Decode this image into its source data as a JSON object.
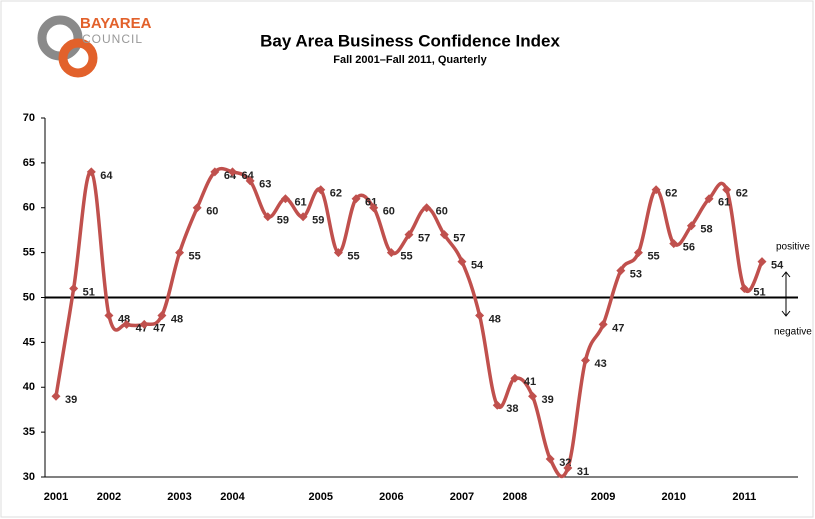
{
  "logo": {
    "line1": "BAYAREA",
    "line2": "COUNCIL"
  },
  "chart_data": {
    "type": "line",
    "title": "Bay Area Business Confidence Index",
    "subtitle": "Fall 2001–Fall 2011, Quarterly",
    "categories": [
      "2001",
      null,
      null,
      "2002",
      null,
      null,
      null,
      "2003",
      null,
      null,
      "2004",
      null,
      null,
      null,
      null,
      "2005",
      null,
      null,
      null,
      "2006",
      null,
      null,
      null,
      "2007",
      null,
      null,
      "2008",
      null,
      null,
      null,
      null,
      "2009",
      null,
      null,
      null,
      "2010",
      null,
      null,
      null,
      "2011",
      null
    ],
    "series": [
      {
        "name": "Bay Area Business Confidence Index",
        "color": "#c0504d",
        "values": [
          39,
          51,
          64,
          48,
          47,
          47,
          48,
          55,
          60,
          64,
          64,
          63,
          59,
          61,
          59,
          62,
          55,
          61,
          60,
          55,
          57,
          60,
          57,
          54,
          48,
          38,
          41,
          39,
          32,
          31,
          43,
          47,
          53,
          55,
          62,
          56,
          58,
          61,
          62,
          51,
          54
        ]
      }
    ],
    "ylim": [
      30,
      70
    ],
    "yticks": [
      30,
      35,
      40,
      45,
      50,
      55,
      60,
      65,
      70
    ],
    "reference_line": 50,
    "annotations": [
      "positive",
      "negative"
    ]
  }
}
